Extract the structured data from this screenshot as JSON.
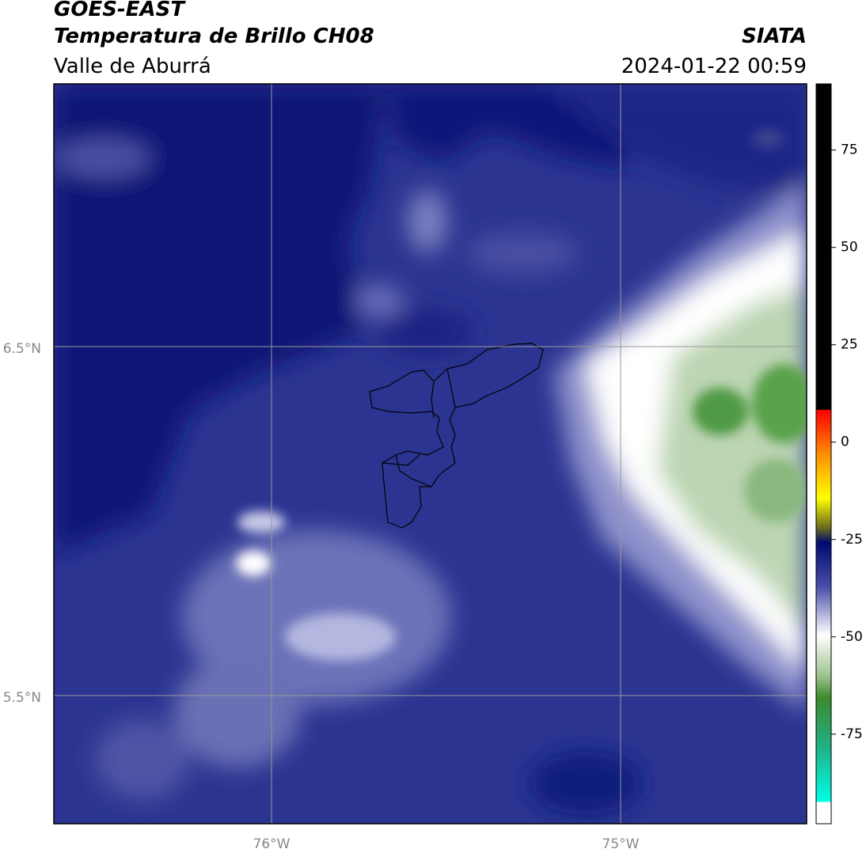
{
  "header": {
    "title": "GOES-EAST",
    "subtitle": "Temperatura de Brillo CH08",
    "region": "Valle de Aburrá",
    "source": "SIATA",
    "datetime": "2024-01-22 00:59"
  },
  "map": {
    "lat_labels": [
      "6.5°N",
      "5.5°N"
    ],
    "lon_labels": [
      "76°W",
      "75°W"
    ]
  },
  "colorbar": {
    "lim": [
      -98,
      92
    ],
    "ticks": [
      75,
      50,
      25,
      0,
      -25,
      -50,
      -75
    ]
  }
}
